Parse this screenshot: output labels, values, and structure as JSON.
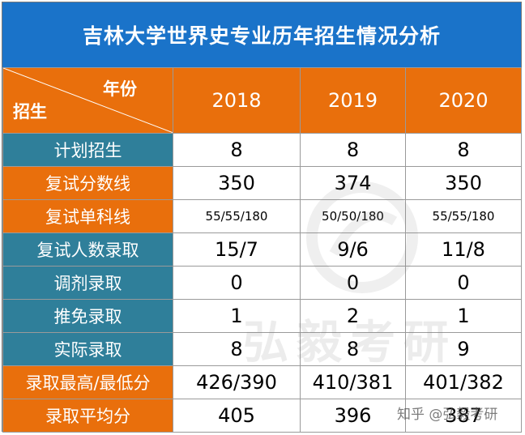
{
  "title": "吉林大学世界史专业历年招生情况分析",
  "corner": {
    "top_label": "年份",
    "bottom_label": "招生"
  },
  "years": [
    "2018",
    "2019",
    "2020"
  ],
  "rows": [
    {
      "label": "计划招生",
      "values": [
        "8",
        "8",
        "8"
      ]
    },
    {
      "label": "复试分数线",
      "values": [
        "350",
        "374",
        "350"
      ]
    },
    {
      "label": "复试单科线",
      "values": [
        "55/55/180",
        "50/50/180",
        "55/55/180"
      ]
    },
    {
      "label": "复试人数录取",
      "values": [
        "15/7",
        "9/6",
        "11/8"
      ]
    },
    {
      "label": "调剂录取",
      "values": [
        "0",
        "0",
        "0"
      ]
    },
    {
      "label": "推免录取",
      "values": [
        "1",
        "2",
        "1"
      ]
    },
    {
      "label": "实际录取",
      "values": [
        "8",
        "8",
        "9"
      ]
    },
    {
      "label": "录取最高/最低分",
      "values": [
        "426/390",
        "410/381",
        "401/382"
      ]
    },
    {
      "label": "录取平均分",
      "values": [
        "405",
        "396",
        "387"
      ]
    }
  ],
  "watermark": {
    "text": "弘毅考研"
  },
  "footer_mark": "知乎 @弘毅考研",
  "colors": {
    "title_bg": "#1a73c9",
    "header_bg": "#e96f0c",
    "label_teal": "#2f7f9a",
    "label_orange": "#e96f0c"
  },
  "icons": [
    "watermark-logo-icon"
  ]
}
